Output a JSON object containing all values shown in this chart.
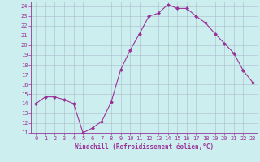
{
  "x": [
    0,
    1,
    2,
    3,
    4,
    5,
    6,
    7,
    8,
    9,
    10,
    11,
    12,
    13,
    14,
    15,
    16,
    17,
    18,
    19,
    20,
    21,
    22,
    23
  ],
  "y": [
    14,
    14.7,
    14.7,
    14.4,
    14,
    11,
    11.5,
    12.2,
    14.2,
    17.5,
    19.5,
    21.2,
    23,
    23.3,
    24.2,
    23.8,
    23.8,
    23,
    22.3,
    21.2,
    20.2,
    19.2,
    17.4,
    16.2
  ],
  "line_color": "#993399",
  "marker": "D",
  "marker_size": 2,
  "bg_color": "#cceeee",
  "grid_color": "#aabbcc",
  "xlabel": "Windchill (Refroidissement éolien,°C)",
  "xlim": [
    -0.5,
    23.5
  ],
  "ylim": [
    11,
    24.5
  ],
  "yticks": [
    11,
    12,
    13,
    14,
    15,
    16,
    17,
    18,
    19,
    20,
    21,
    22,
    23,
    24
  ],
  "xticks": [
    0,
    1,
    2,
    3,
    4,
    5,
    6,
    7,
    8,
    9,
    10,
    11,
    12,
    13,
    14,
    15,
    16,
    17,
    18,
    19,
    20,
    21,
    22,
    23
  ],
  "tick_fontsize": 5,
  "xlabel_fontsize": 5.5,
  "spine_color": "#993399"
}
